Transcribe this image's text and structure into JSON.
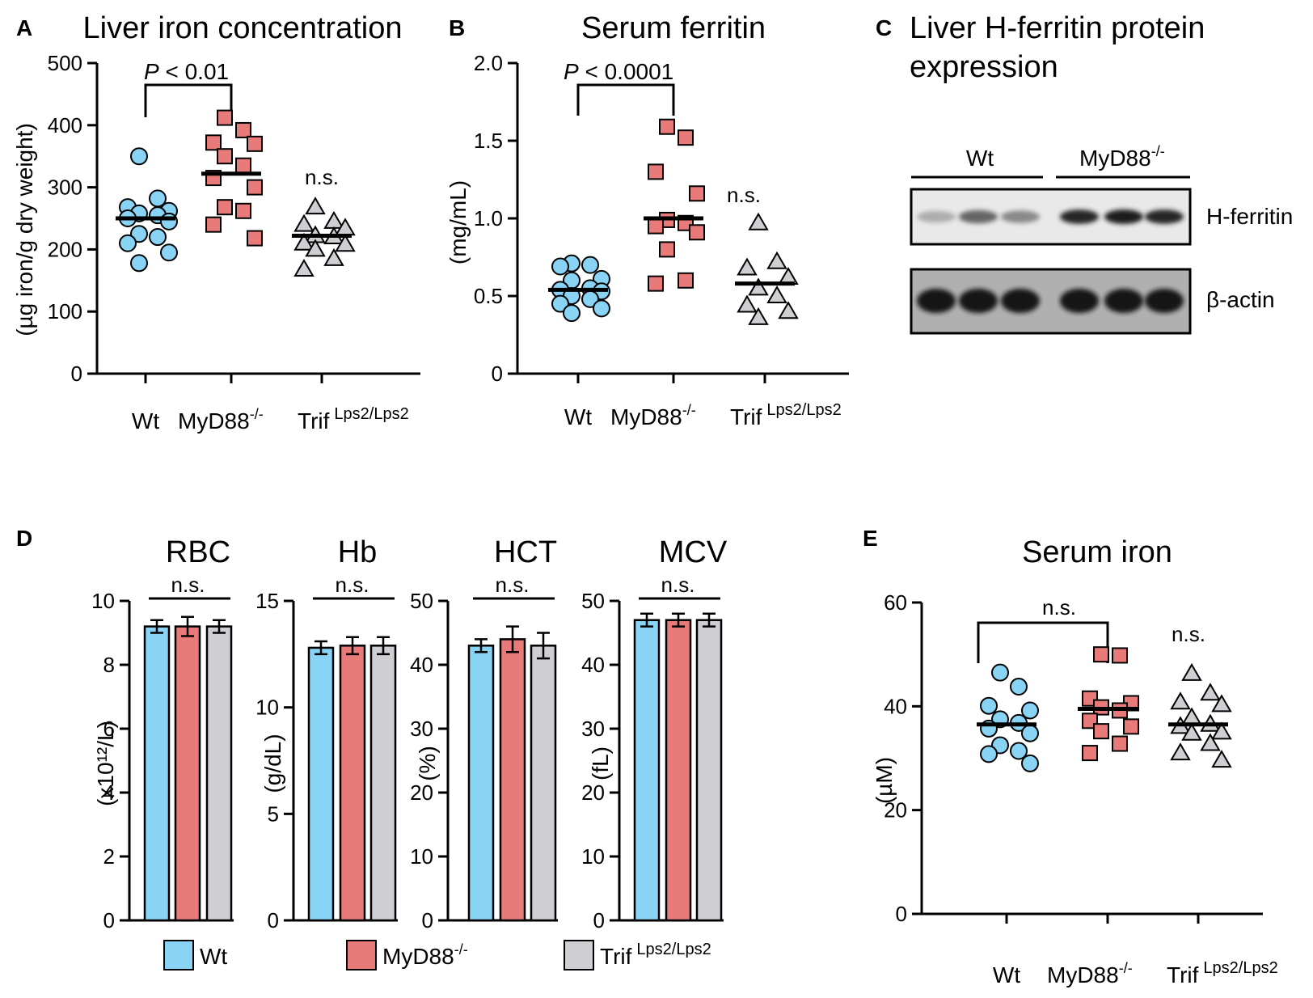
{
  "colors": {
    "wt": "#89d4f5",
    "myd88": "#e87a7a",
    "trif": "#cfcfd3",
    "axis": "#000000"
  },
  "wt_label": "Wt",
  "myd88_label": "MyD88",
  "myd88_sup": "-/-",
  "trif_label": "Trif",
  "trif_sup": "Lps2/Lps2",
  "ns": "n.s.",
  "chart_data": [
    {
      "id": "A",
      "panel_label": "A",
      "type": "scatter",
      "title": "Liver iron concentration",
      "ylabel": "(µg iron/g dry weight)",
      "ylim": [
        0,
        500
      ],
      "yticks": [
        "0",
        "100",
        "200",
        "300",
        "400",
        "500"
      ],
      "categories": [
        "Wt",
        "MyD88-/-",
        "Trif Lps2/Lps2"
      ],
      "series": [
        {
          "name": "Wt",
          "marker": "circle",
          "mean": 250,
          "values": [
            350,
            282,
            268,
            262,
            258,
            255,
            250,
            245,
            225,
            220,
            210,
            195,
            178
          ]
        },
        {
          "name": "MyD88-/-",
          "marker": "square",
          "mean": 322,
          "values": [
            412,
            392,
            372,
            370,
            350,
            335,
            315,
            300,
            268,
            262,
            240,
            218
          ]
        },
        {
          "name": "Trif Lps2/Lps2",
          "marker": "triangle",
          "mean": 222,
          "values": [
            268,
            245,
            240,
            234,
            222,
            220,
            210,
            208,
            200,
            185,
            168
          ]
        }
      ],
      "annotation": {
        "p_symbol": "P",
        "text": " < 0.01",
        "between": [
          "Wt",
          "MyD88-/-"
        ]
      },
      "ns_over": [
        "Trif Lps2/Lps2"
      ]
    },
    {
      "id": "B",
      "panel_label": "B",
      "type": "scatter",
      "title": "Serum ferritin",
      "ylabel": "(mg/mL)",
      "ylim": [
        0,
        2.0
      ],
      "yticks": [
        "0",
        "0.5",
        "1.0",
        "1.5",
        "2.0"
      ],
      "categories": [
        "Wt",
        "MyD88-/-",
        "Trif Lps2/Lps2"
      ],
      "series": [
        {
          "name": "Wt",
          "marker": "circle",
          "mean": 0.54,
          "values": [
            0.71,
            0.7,
            0.69,
            0.61,
            0.6,
            0.55,
            0.54,
            0.53,
            0.5,
            0.48,
            0.45,
            0.42,
            0.39
          ]
        },
        {
          "name": "MyD88-/-",
          "marker": "square",
          "mean": 1.0,
          "values": [
            1.59,
            1.52,
            1.3,
            1.16,
            0.99,
            0.97,
            0.95,
            0.91,
            0.8,
            0.6,
            0.58
          ]
        },
        {
          "name": "Trif Lps2/Lps2",
          "marker": "triangle",
          "mean": 0.58,
          "values": [
            0.97,
            0.72,
            0.68,
            0.62,
            0.55,
            0.5,
            0.44,
            0.4,
            0.36
          ]
        }
      ],
      "annotation": {
        "p_symbol": "P",
        "text": " < 0.0001",
        "between": [
          "Wt",
          "MyD88-/-"
        ]
      },
      "ns_over": [
        "Trif Lps2/Lps2"
      ]
    },
    {
      "id": "D_RBC",
      "panel_label": "D",
      "type": "bar",
      "title": "RBC",
      "ylabel": "(x10¹²/L)",
      "ylim": [
        0,
        10
      ],
      "yticks": [
        "0",
        "2",
        "4",
        "6",
        "8",
        "10"
      ],
      "categories": [
        "Wt",
        "MyD88-/-",
        "Trif Lps2/Lps2"
      ],
      "values": [
        9.2,
        9.2,
        9.2
      ],
      "errors": [
        0.2,
        0.3,
        0.2
      ],
      "ns_over_all": true
    },
    {
      "id": "D_Hb",
      "type": "bar",
      "title": "Hb",
      "ylabel": "(g/dL)",
      "ylim": [
        0,
        15
      ],
      "yticks": [
        "0",
        "5",
        "10",
        "15"
      ],
      "categories": [
        "Wt",
        "MyD88-/-",
        "Trif Lps2/Lps2"
      ],
      "values": [
        12.8,
        12.9,
        12.9
      ],
      "errors": [
        0.3,
        0.4,
        0.4
      ],
      "ns_over_all": true
    },
    {
      "id": "D_HCT",
      "type": "bar",
      "title": "HCT",
      "ylabel": "(%)",
      "ylim": [
        0,
        50
      ],
      "yticks": [
        "0",
        "10",
        "20",
        "30",
        "40",
        "50"
      ],
      "categories": [
        "Wt",
        "MyD88-/-",
        "Trif Lps2/Lps2"
      ],
      "values": [
        43,
        44,
        43
      ],
      "errors": [
        1,
        2,
        2
      ],
      "ns_over_all": true
    },
    {
      "id": "D_MCV",
      "type": "bar",
      "title": "MCV",
      "ylabel": "(fL)",
      "ylim": [
        0,
        50
      ],
      "yticks": [
        "0",
        "10",
        "20",
        "30",
        "40",
        "50"
      ],
      "categories": [
        "Wt",
        "MyD88-/-",
        "Trif Lps2/Lps2"
      ],
      "values": [
        47,
        47,
        47
      ],
      "errors": [
        1,
        1,
        1
      ],
      "ns_over_all": true
    },
    {
      "id": "E",
      "panel_label": "E",
      "type": "scatter",
      "title": "Serum iron",
      "ylabel": "(µM)",
      "ylim": [
        0,
        60
      ],
      "yticks": [
        "0",
        "20",
        "40",
        "60"
      ],
      "categories": [
        "Wt",
        "MyD88-/-",
        "Trif Lps2/Lps2"
      ],
      "series": [
        {
          "name": "Wt",
          "marker": "circle",
          "mean": 36.5,
          "values": [
            46.5,
            43.8,
            40.1,
            39.2,
            37.5,
            36.8,
            35.7,
            34.8,
            32.5,
            31.4,
            30.8,
            29.0
          ]
        },
        {
          "name": "MyD88-/-",
          "marker": "square",
          "mean": 39.5,
          "values": [
            50,
            49.8,
            41.5,
            40.6,
            39.8,
            39.2,
            37.2,
            36.1,
            35.2,
            32.8,
            31.0
          ]
        },
        {
          "name": "Trif Lps2/Lps2",
          "marker": "triangle",
          "mean": 36.5,
          "values": [
            46.3,
            42.5,
            40.8,
            40.3,
            37.8,
            36.5,
            36.1,
            35.0,
            34.8,
            32.8,
            31.0,
            29.6
          ]
        }
      ],
      "annotation": {
        "text": "n.s.",
        "between": [
          "Wt",
          "MyD88-/-"
        ]
      },
      "ns_over": [
        "Trif Lps2/Lps2"
      ]
    }
  ],
  "western_blot": {
    "panel_label": "C",
    "title_line1": "Liver H-ferritin protein",
    "title_line2": "expression",
    "groups": [
      {
        "label": "Wt",
        "sup": ""
      },
      {
        "label": "MyD88",
        "sup": "-/-"
      }
    ],
    "bands": [
      {
        "label": "H-ferritin",
        "intensities": [
          0.15,
          0.55,
          0.35,
          0.9,
          0.95,
          0.9
        ]
      },
      {
        "label": "β-actin",
        "intensities": [
          1,
          1,
          1,
          1,
          1,
          1
        ]
      }
    ]
  }
}
